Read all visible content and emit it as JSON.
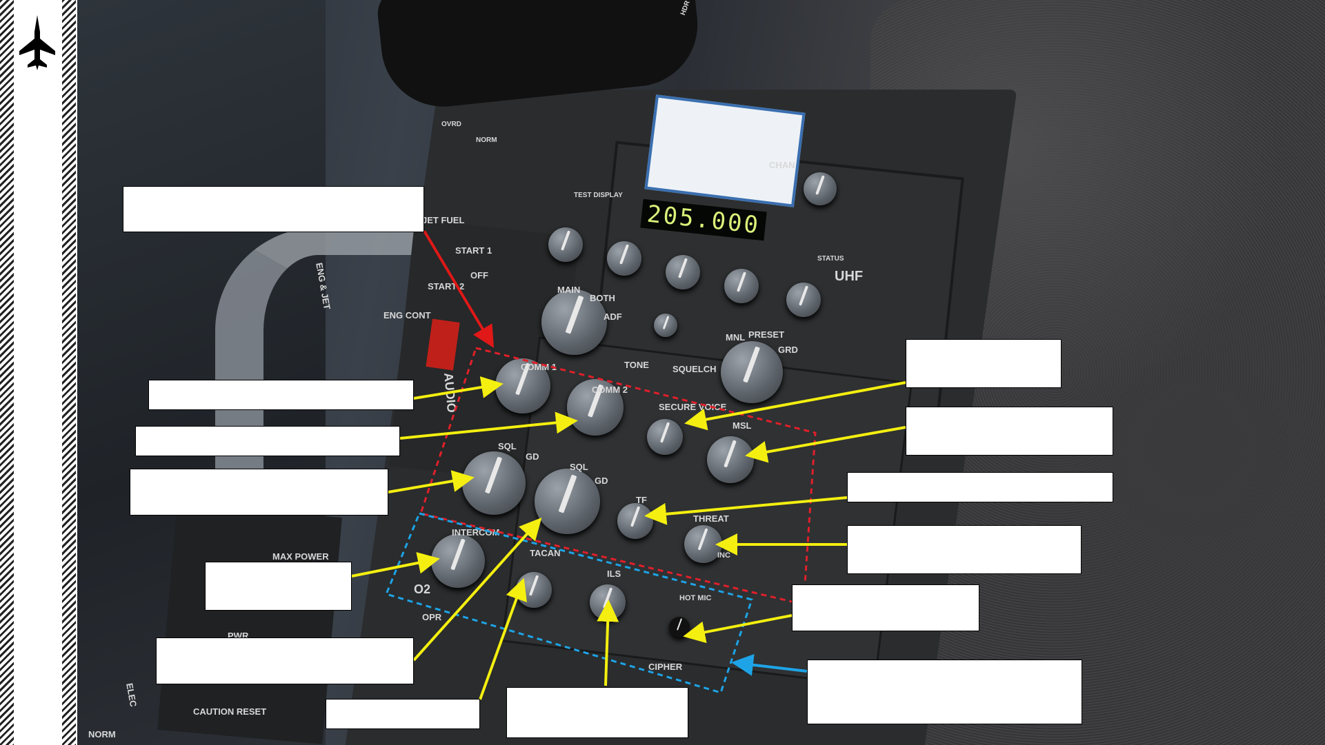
{
  "panel_labels": {
    "jet_fuel": "JET FUEL",
    "start1": "START 1",
    "start2": "START 2",
    "off": "OFF",
    "eng_cont": "ENG CONT",
    "eng_jet": "ENG & JET",
    "chan": "CHAN",
    "uhf": "UHF",
    "main": "MAIN",
    "both": "BOTH",
    "adf": "ADF",
    "mnl": "MNL",
    "preset": "PRESET",
    "grd": "GRD",
    "tone": "TONE",
    "squelch": "SQUELCH",
    "status": "STATUS",
    "test_display": "TEST DISPLAY",
    "frequency_display": "205.000",
    "comm1": "COMM 1",
    "comm2": "COMM 2",
    "secure_voice": "SECURE VOICE",
    "msl": "MSL",
    "sql": "SQL",
    "gd": "GD",
    "tf": "TF",
    "threat": "THREAT",
    "inc": "INC",
    "intercom": "INTERCOM",
    "tacan": "TACAN",
    "ils": "ILS",
    "hot_mic": "HOT MIC",
    "cipher": "CIPHER",
    "audio": "AUDIO",
    "max_power": "MAX POWER",
    "pwr": "PWR",
    "caution_reset": "CAUTION RESET",
    "norm": "NORM",
    "elec": "ELEC",
    "opr": "OPR",
    "o2": "O2",
    "hdr_cursor_enable": "HDR CURSOR/ ENABLE",
    "ovrd": "OVRD",
    "norm2": "NORM"
  },
  "colors": {
    "yellow_arrow": "#f4ef10",
    "red_arrow": "#e01818",
    "blue_arrow": "#1ea4e6",
    "red_dash": "#e0202a",
    "blue_dash": "#1ea4e6"
  },
  "icons": {
    "logo": "fighter-jet-icon"
  }
}
